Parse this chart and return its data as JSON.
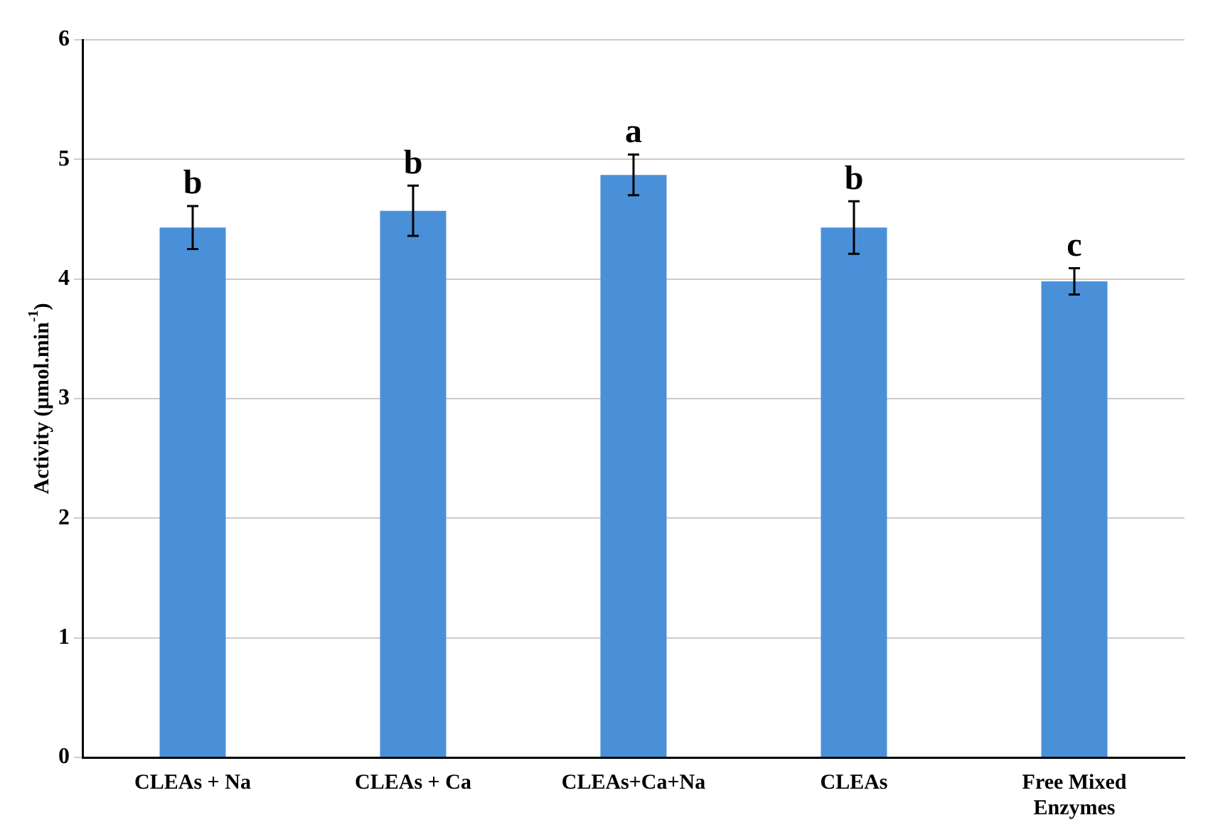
{
  "chart_data": {
    "type": "bar",
    "ylabel": "Activity (µmol.min$^{-1}$)",
    "categories": [
      "CLEAs + Na",
      "CLEAs + Ca",
      "CLEAs+Ca+Na",
      "CLEAs",
      "Free Mixed Enzymes"
    ],
    "values": [
      4.43,
      4.57,
      4.87,
      4.43,
      3.98
    ],
    "errors": [
      0.18,
      0.21,
      0.17,
      0.22,
      0.11
    ],
    "color": "#4a90d9",
    "ylim": [
      0,
      6
    ],
    "yticks": [
      0,
      1,
      2,
      3,
      4,
      5,
      6
    ],
    "grid": "y",
    "legend": false,
    "annotations": [
      {
        "text": "b",
        "x": "CLEAs + Na",
        "y": 4.61
      },
      {
        "text": "b",
        "x": "CLEAs + Ca",
        "y": 4.78
      },
      {
        "text": "a",
        "x": "CLEAs+Ca+Na",
        "y": 5.04
      },
      {
        "text": "b",
        "x": "CLEAs",
        "y": 4.65
      },
      {
        "text": "c",
        "x": "Free Mixed Enzymes",
        "y": 4.09
      }
    ]
  }
}
